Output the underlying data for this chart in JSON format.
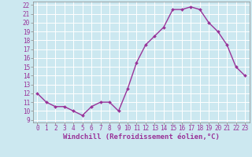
{
  "x": [
    0,
    1,
    2,
    3,
    4,
    5,
    6,
    7,
    8,
    9,
    10,
    11,
    12,
    13,
    14,
    15,
    16,
    17,
    18,
    19,
    20,
    21,
    22,
    23
  ],
  "y": [
    12,
    11,
    10.5,
    10.5,
    10,
    9.5,
    10.5,
    11,
    11,
    10,
    12.5,
    15.5,
    17.5,
    18.5,
    19.5,
    21.5,
    21.5,
    21.8,
    21.5,
    20,
    19,
    17.5,
    15,
    14
  ],
  "line_color": "#993399",
  "marker": "D",
  "marker_size": 2.0,
  "bg_color": "#cce8f0",
  "grid_color": "#b0d8e0",
  "xlabel": "Windchill (Refroidissement éolien,°C)",
  "xlabel_color": "#993399",
  "ylabel_ticks": [
    9,
    10,
    11,
    12,
    13,
    14,
    15,
    16,
    17,
    18,
    19,
    20,
    21,
    22
  ],
  "xtick_labels": [
    "0",
    "1",
    "2",
    "3",
    "4",
    "5",
    "6",
    "7",
    "8",
    "9",
    "10",
    "11",
    "12",
    "13",
    "14",
    "15",
    "16",
    "17",
    "18",
    "19",
    "20",
    "21",
    "22",
    "23"
  ],
  "ylim": [
    8.7,
    22.4
  ],
  "xlim": [
    -0.5,
    23.5
  ],
  "tick_color": "#993399",
  "tick_labelsize": 5.5,
  "xlabel_fontsize": 6.5,
  "linewidth": 1.0
}
